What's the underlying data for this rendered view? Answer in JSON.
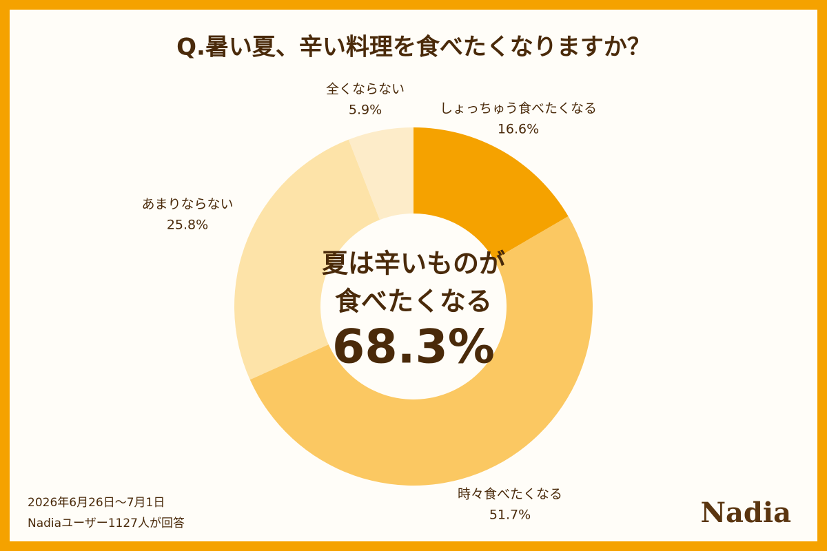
{
  "chart_data": {
    "type": "donut",
    "title": "Q.暑い夏、辛い料理を食べたくなりますか？",
    "categories": [
      "しょっちゅう食べたくなる",
      "時々食べたくなる",
      "あまりならない",
      "全くならない"
    ],
    "values": [
      16.6,
      51.7,
      25.8,
      5.9
    ],
    "value_labels": [
      "16.6%",
      "51.7%",
      "25.8%",
      "5.9%"
    ],
    "colors": [
      "#f5a200",
      "#fbc862",
      "#fde3a8",
      "#fdecc9"
    ],
    "center_text": [
      "夏は辛いものが",
      "食べたくなる",
      "68.3%"
    ],
    "footnotes": [
      "2026年6月26日～7月1日",
      "Nadiaユーザー1127人が回答"
    ],
    "logo": "Nadia"
  }
}
